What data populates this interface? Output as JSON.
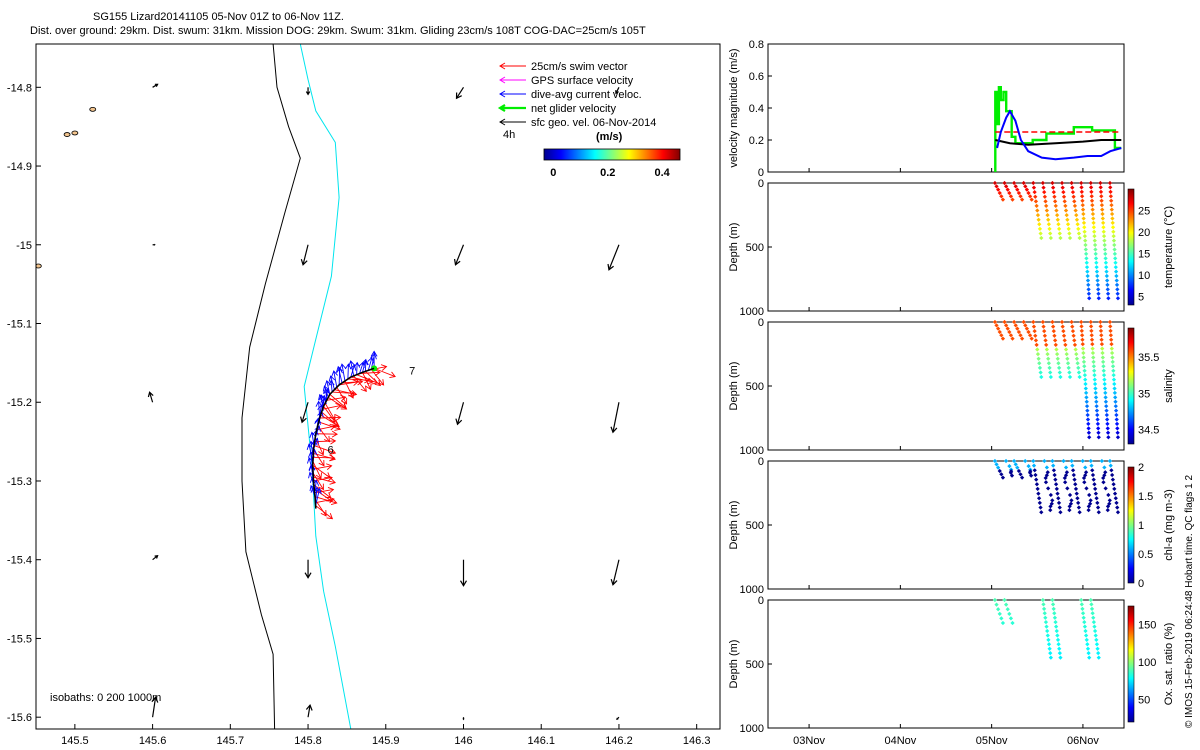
{
  "title": {
    "line1": "SG155 Lizard20141105 05-Nov 01Z to 06-Nov 11Z.",
    "line2": "Dist. over ground: 29km. Dist. swum: 31km. Mission DOG: 29km. Swum: 31km. Gliding 23cm/s 108T COG-DAC=25cm/s 105T"
  },
  "side_note": "© IMOS 15-Feb-2019 06:24:48 Hobart time. QC flags 1  2",
  "map": {
    "x_ticks": [
      "145.5",
      "145.6",
      "145.7",
      "145.8",
      "145.9",
      "146",
      "146.1",
      "146.2",
      "146.3"
    ],
    "y_ticks": [
      "-14.8",
      "-14.9",
      "-15",
      "-15.1",
      "-15.2",
      "-15.3",
      "-15.4",
      "-15.5",
      "-15.6"
    ],
    "xlim": [
      145.45,
      146.33
    ],
    "ylim": [
      -15.615,
      -14.745
    ],
    "legend": [
      {
        "label": "25cm/s swim vector",
        "color": "#ff0000"
      },
      {
        "label": "GPS surface velocity",
        "color": "#ff00ff"
      },
      {
        "label": "dive-avg current veloc.",
        "color": "#0000ff"
      },
      {
        "label": "net glider velocity",
        "color": "#00ee00"
      },
      {
        "label": "sfc geo. vel. 06-Nov-2014",
        "color": "#000000"
      }
    ],
    "legend_extra": "4h",
    "colorbar_title": "(m/s)",
    "colorbar_ticks": [
      "0",
      "0.2",
      "0.4"
    ],
    "annotations": [
      {
        "text": "7",
        "lon": 145.93,
        "lat": -15.165
      },
      {
        "text": "6",
        "lon": 145.825,
        "lat": -15.265
      }
    ],
    "isobath_note": "isobaths: 0   200  1000m",
    "isobath_200": [
      [
        145.755,
        -14.745
      ],
      [
        145.76,
        -14.8
      ],
      [
        145.775,
        -14.85
      ],
      [
        145.79,
        -14.89
      ],
      [
        145.77,
        -14.96
      ],
      [
        145.745,
        -15.05
      ],
      [
        145.725,
        -15.13
      ],
      [
        145.715,
        -15.22
      ],
      [
        145.715,
        -15.3
      ],
      [
        145.72,
        -15.39
      ],
      [
        145.74,
        -15.47
      ],
      [
        145.755,
        -15.52
      ],
      [
        145.757,
        -15.615
      ]
    ],
    "isobath_1000": [
      [
        145.79,
        -14.745
      ],
      [
        145.8,
        -14.79
      ],
      [
        145.81,
        -14.83
      ],
      [
        145.835,
        -14.87
      ],
      [
        145.84,
        -14.94
      ],
      [
        145.83,
        -15.04
      ],
      [
        145.81,
        -15.12
      ],
      [
        145.795,
        -15.18
      ],
      [
        145.805,
        -15.28
      ],
      [
        145.81,
        -15.37
      ],
      [
        145.82,
        -15.44
      ],
      [
        145.835,
        -15.51
      ],
      [
        145.855,
        -15.615
      ]
    ],
    "geo_vectors": [
      {
        "lon": 145.6,
        "lat": -14.8,
        "u": 0.05,
        "v": 0.03
      },
      {
        "lon": 145.8,
        "lat": -14.8,
        "u": 0.0,
        "v": -0.07
      },
      {
        "lon": 146.0,
        "lat": -14.8,
        "u": -0.07,
        "v": -0.11
      },
      {
        "lon": 146.2,
        "lat": -14.8,
        "u": -0.03,
        "v": -0.06
      },
      {
        "lon": 145.6,
        "lat": -15.0,
        "u": 0.02,
        "v": 0.0
      },
      {
        "lon": 145.8,
        "lat": -15.0,
        "u": -0.05,
        "v": -0.2
      },
      {
        "lon": 146.0,
        "lat": -15.0,
        "u": -0.08,
        "v": -0.2
      },
      {
        "lon": 146.2,
        "lat": -15.0,
        "u": -0.1,
        "v": -0.25
      },
      {
        "lon": 145.6,
        "lat": -15.2,
        "u": -0.03,
        "v": 0.1
      },
      {
        "lon": 145.8,
        "lat": -15.2,
        "u": -0.06,
        "v": -0.2
      },
      {
        "lon": 146.0,
        "lat": -15.2,
        "u": -0.06,
        "v": -0.22
      },
      {
        "lon": 146.2,
        "lat": -15.2,
        "u": -0.06,
        "v": -0.3
      },
      {
        "lon": 145.6,
        "lat": -15.4,
        "u": 0.05,
        "v": 0.04
      },
      {
        "lon": 145.8,
        "lat": -15.4,
        "u": 0.0,
        "v": -0.18
      },
      {
        "lon": 146.0,
        "lat": -15.4,
        "u": 0.0,
        "v": -0.26
      },
      {
        "lon": 146.2,
        "lat": -15.4,
        "u": -0.06,
        "v": -0.25
      },
      {
        "lon": 145.6,
        "lat": -15.6,
        "u": 0.03,
        "v": 0.2
      },
      {
        "lon": 145.8,
        "lat": -15.6,
        "u": 0.02,
        "v": 0.12
      },
      {
        "lon": 146.0,
        "lat": -15.6,
        "u": 0.0,
        "v": -0.02
      },
      {
        "lon": 146.2,
        "lat": -15.6,
        "u": -0.02,
        "v": -0.02
      }
    ],
    "track": [
      [
        145.885,
        -15.157
      ],
      [
        145.87,
        -15.162
      ],
      [
        145.855,
        -15.168
      ],
      [
        145.84,
        -15.178
      ],
      [
        145.828,
        -15.19
      ],
      [
        145.82,
        -15.205
      ],
      [
        145.815,
        -15.22
      ],
      [
        145.81,
        -15.24
      ],
      [
        145.807,
        -15.26
      ],
      [
        145.806,
        -15.28
      ],
      [
        145.807,
        -15.3
      ],
      [
        145.809,
        -15.32
      ],
      [
        145.81,
        -15.335
      ]
    ],
    "islands": [
      {
        "lon": 145.523,
        "lat": -14.828
      },
      {
        "lon": 145.5,
        "lat": -14.858
      },
      {
        "lon": 145.49,
        "lat": -14.86
      },
      {
        "lon": 145.453,
        "lat": -15.027
      }
    ]
  },
  "right_panels": {
    "x_ticks": [
      "03Nov",
      "04Nov",
      "05Nov",
      "06Nov"
    ],
    "xlim_days": [
      2.55,
      6.45
    ],
    "velocity": {
      "ylabel": "velocity magnitude (m/s)",
      "y_ticks": [
        "0",
        "0.2",
        "0.4",
        "0.6",
        "0.8"
      ],
      "ylim": [
        0,
        0.8
      ],
      "net_glider": [
        [
          5.04,
          0.0
        ],
        [
          5.04,
          0.5
        ],
        [
          5.06,
          0.5
        ],
        [
          5.06,
          0.3
        ],
        [
          5.08,
          0.3
        ],
        [
          5.08,
          0.53
        ],
        [
          5.1,
          0.53
        ],
        [
          5.1,
          0.45
        ],
        [
          5.13,
          0.45
        ],
        [
          5.13,
          0.5
        ],
        [
          5.16,
          0.5
        ],
        [
          5.16,
          0.38
        ],
        [
          5.22,
          0.38
        ],
        [
          5.22,
          0.22
        ],
        [
          5.26,
          0.22
        ],
        [
          5.26,
          0.18
        ],
        [
          5.45,
          0.18
        ],
        [
          5.45,
          0.2
        ],
        [
          5.6,
          0.2
        ],
        [
          5.6,
          0.24
        ],
        [
          5.9,
          0.24
        ],
        [
          5.9,
          0.28
        ],
        [
          6.1,
          0.28
        ],
        [
          6.1,
          0.26
        ],
        [
          6.35,
          0.26
        ],
        [
          6.35,
          0.15
        ],
        [
          6.42,
          0.15
        ]
      ],
      "dive_avg": [
        [
          5.06,
          0.15
        ],
        [
          5.1,
          0.25
        ],
        [
          5.16,
          0.34
        ],
        [
          5.2,
          0.38
        ],
        [
          5.26,
          0.32
        ],
        [
          5.32,
          0.2
        ],
        [
          5.4,
          0.13
        ],
        [
          5.55,
          0.09
        ],
        [
          5.7,
          0.08
        ],
        [
          5.9,
          0.09
        ],
        [
          6.05,
          0.1
        ],
        [
          6.2,
          0.1
        ],
        [
          6.3,
          0.13
        ],
        [
          6.42,
          0.15
        ]
      ],
      "geo_speed": [
        [
          5.04,
          0.2
        ],
        [
          5.2,
          0.18
        ],
        [
          5.4,
          0.17
        ],
        [
          5.7,
          0.18
        ],
        [
          6.0,
          0.19
        ],
        [
          6.2,
          0.2
        ],
        [
          6.42,
          0.2
        ]
      ],
      "swim_speed": 0.25
    },
    "temperature": {
      "ylabel": "Depth (m)",
      "cbar_label": "temperature (°C)",
      "y_ticks": [
        "0",
        "500",
        "1000"
      ],
      "ylim": [
        0,
        1000
      ],
      "cbar_ticks": [
        "5",
        "10",
        "15",
        "20",
        "25"
      ],
      "cbar_range": [
        3,
        30
      ]
    },
    "salinity": {
      "ylabel": "Depth (m)",
      "cbar_label": "salinity",
      "y_ticks": [
        "0",
        "500",
        "1000"
      ],
      "ylim": [
        0,
        1000
      ],
      "cbar_ticks": [
        "34.5",
        "35",
        "35.5"
      ],
      "cbar_range": [
        34.3,
        35.9
      ]
    },
    "chl": {
      "ylabel": "Depth (m)",
      "cbar_label": "chl-a (mg m-3)",
      "y_ticks": [
        "0",
        "500",
        "1000"
      ],
      "ylim": [
        0,
        1000
      ],
      "cbar_ticks": [
        "0",
        "0.5",
        "1",
        "1.5",
        "2"
      ],
      "cbar_range": [
        0,
        2
      ]
    },
    "oxygen": {
      "ylabel": "Depth (m)",
      "cbar_label": "Ox. sat. ratio (%)",
      "y_ticks": [
        "0",
        "500",
        "1000"
      ],
      "ylim": [
        0,
        1000
      ],
      "cbar_ticks": [
        "50",
        "100",
        "150"
      ],
      "cbar_range": [
        20,
        175
      ]
    }
  },
  "chart_data": [
    {
      "type": "line",
      "title": "",
      "xlabel": "",
      "ylabel": "velocity magnitude (m/s)",
      "ylim": [
        0,
        0.8
      ],
      "series": [
        {
          "name": "net glider velocity",
          "color": "#00ee00"
        },
        {
          "name": "dive-avg current veloc.",
          "color": "#0000ff"
        },
        {
          "name": "sfc geo. vel. 06-Nov-2014",
          "color": "#000000"
        },
        {
          "name": "25cm/s swim vector",
          "color": "#ff0000"
        }
      ]
    },
    {
      "type": "scatter",
      "ylabel": "Depth (m)",
      "colorbar": "temperature (°C)",
      "ylim": [
        0,
        1000
      ]
    },
    {
      "type": "scatter",
      "ylabel": "Depth (m)",
      "colorbar": "salinity",
      "ylim": [
        0,
        1000
      ]
    },
    {
      "type": "scatter",
      "ylabel": "Depth (m)",
      "colorbar": "chl-a (mg m-3)",
      "ylim": [
        0,
        1000
      ]
    },
    {
      "type": "scatter",
      "ylabel": "Depth (m)",
      "colorbar": "Ox. sat. ratio (%)",
      "ylim": [
        0,
        1000
      ]
    }
  ]
}
